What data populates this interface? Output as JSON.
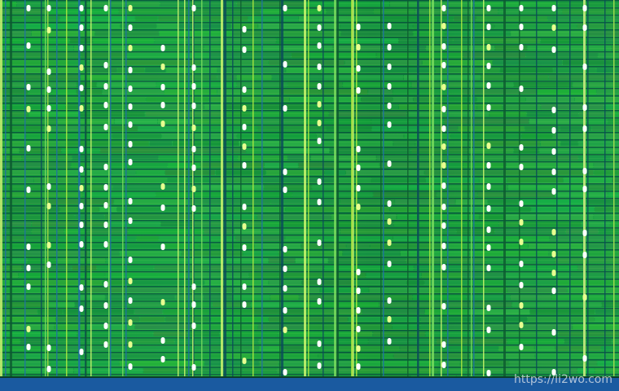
{
  "watermark": "https://li2wo.com"
}
